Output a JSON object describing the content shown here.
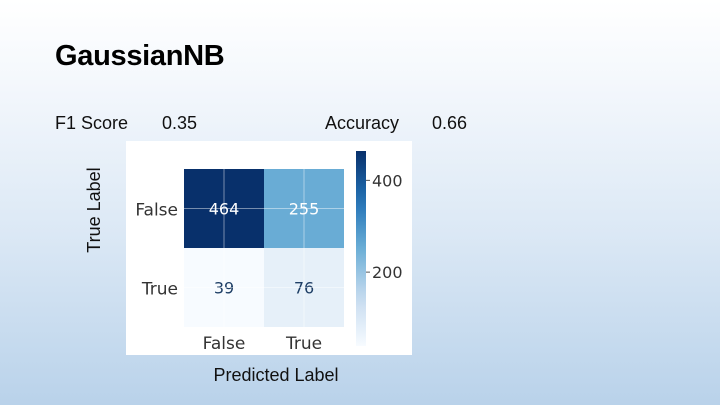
{
  "slide": {
    "title": "GaussianNB",
    "f1_label": "F1 Score",
    "f1_value": "0.35",
    "accuracy_label": "Accuracy",
    "accuracy_value": "0.66"
  },
  "chart_data": {
    "type": "heatmap",
    "xlabel": "Predicted Label",
    "ylabel": "True Label",
    "x_categories": [
      "False",
      "True"
    ],
    "y_categories": [
      "False",
      "True"
    ],
    "values": [
      [
        464,
        255
      ],
      [
        39,
        76
      ]
    ],
    "colorbar": {
      "ticks": [
        400,
        200
      ],
      "range": [
        39,
        464
      ],
      "colormap": "Blues"
    }
  }
}
